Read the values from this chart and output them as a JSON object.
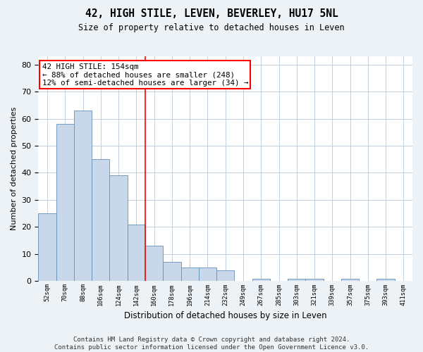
{
  "title": "42, HIGH STILE, LEVEN, BEVERLEY, HU17 5NL",
  "subtitle": "Size of property relative to detached houses in Leven",
  "xlabel": "Distribution of detached houses by size in Leven",
  "ylabel": "Number of detached properties",
  "bar_values": [
    25,
    58,
    63,
    45,
    39,
    21,
    13,
    7,
    5,
    5,
    4,
    0,
    1,
    0,
    1,
    1,
    0,
    1,
    0,
    1,
    0
  ],
  "bar_labels": [
    "52sqm",
    "70sqm",
    "88sqm",
    "106sqm",
    "124sqm",
    "142sqm",
    "160sqm",
    "178sqm",
    "196sqm",
    "214sqm",
    "232sqm",
    "249sqm",
    "267sqm",
    "285sqm",
    "303sqm",
    "321sqm",
    "339sqm",
    "357sqm",
    "375sqm",
    "393sqm",
    "411sqm"
  ],
  "bar_color": "#c8d8ea",
  "bar_edge_color": "#6090b8",
  "vline_x": 5.5,
  "vline_color": "red",
  "annotation_text": "42 HIGH STILE: 154sqm\n← 88% of detached houses are smaller (248)\n12% of semi-detached houses are larger (34) →",
  "annotation_box_color": "white",
  "annotation_box_edge": "red",
  "ylim": [
    0,
    83
  ],
  "yticks": [
    0,
    10,
    20,
    30,
    40,
    50,
    60,
    70,
    80
  ],
  "footer": "Contains HM Land Registry data © Crown copyright and database right 2024.\nContains public sector information licensed under the Open Government Licence v3.0.",
  "bg_color": "#edf2f7",
  "plot_bg_color": "white",
  "grid_color": "#b8c8d8",
  "title_fontsize": 10.5,
  "subtitle_fontsize": 8.5,
  "ylabel_fontsize": 8,
  "xlabel_fontsize": 8.5,
  "footer_fontsize": 6.5,
  "annotation_fontsize": 7.8
}
